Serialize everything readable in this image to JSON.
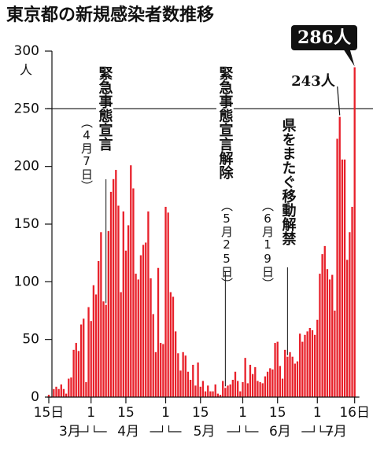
{
  "chart_data": {
    "type": "bar",
    "title": "東京都の新規感染者数推移",
    "y_unit": "人",
    "color": "#e8202a",
    "ylim": [
      0,
      300
    ],
    "yticks": [
      0,
      50,
      100,
      150,
      200,
      250,
      300
    ],
    "hline": 250,
    "months": [
      "3月",
      "4月",
      "5月",
      "6月",
      "7月"
    ],
    "categories": [
      "15日",
      null,
      null,
      null,
      null,
      null,
      null,
      null,
      null,
      null,
      null,
      null,
      null,
      null,
      null,
      null,
      null,
      "1",
      null,
      null,
      null,
      null,
      null,
      null,
      null,
      null,
      null,
      null,
      null,
      null,
      null,
      "15",
      null,
      null,
      null,
      null,
      null,
      null,
      null,
      null,
      null,
      null,
      null,
      null,
      null,
      null,
      null,
      "1",
      null,
      null,
      null,
      null,
      null,
      null,
      null,
      null,
      null,
      null,
      null,
      null,
      null,
      "15",
      null,
      null,
      null,
      null,
      null,
      null,
      null,
      null,
      null,
      null,
      null,
      null,
      null,
      null,
      null,
      null,
      "1",
      null,
      null,
      null,
      null,
      null,
      null,
      null,
      null,
      null,
      null,
      null,
      null,
      null,
      "15",
      null,
      null,
      null,
      null,
      null,
      null,
      null,
      null,
      null,
      null,
      null,
      null,
      null,
      null,
      null,
      "1",
      null,
      null,
      null,
      null,
      null,
      null,
      null,
      null,
      null,
      null,
      null,
      null,
      null,
      null,
      "16日"
    ],
    "values": [
      2,
      0,
      7,
      9,
      7,
      11,
      7,
      3,
      16,
      17,
      41,
      47,
      40,
      63,
      68,
      13,
      78,
      66,
      97,
      89,
      118,
      143,
      83,
      80,
      144,
      178,
      189,
      197,
      166,
      91,
      161,
      127,
      149,
      201,
      181,
      107,
      102,
      123,
      132,
      134,
      161,
      103,
      72,
      39,
      112,
      47,
      46,
      165,
      160,
      91,
      87,
      57,
      38,
      23,
      39,
      36,
      22,
      15,
      28,
      10,
      30,
      9,
      14,
      5,
      10,
      5,
      5,
      11,
      3,
      2,
      14,
      8,
      10,
      11,
      15,
      22,
      14,
      5,
      13,
      34,
      12,
      28,
      20,
      26,
      14,
      13,
      12,
      18,
      22,
      25,
      24,
      47,
      48,
      27,
      16,
      41,
      35,
      39,
      35,
      29,
      31,
      55,
      48,
      54,
      57,
      60,
      58,
      54,
      67,
      107,
      124,
      131,
      111,
      102,
      106,
      75,
      224,
      243,
      206,
      206,
      119,
      143,
      165,
      286
    ],
    "value_labels": [
      null,
      null,
      null,
      null,
      null,
      null,
      null,
      null,
      null,
      null,
      null,
      null,
      null,
      null,
      null,
      null,
      null,
      null,
      null,
      null,
      null,
      null,
      null,
      null,
      null,
      null,
      null,
      null,
      null,
      null,
      null,
      null,
      null,
      null,
      null,
      null,
      null,
      null,
      null,
      null,
      null,
      null,
      null,
      null,
      null,
      null,
      null,
      null,
      null,
      null,
      null,
      null,
      null,
      null,
      null,
      null,
      null,
      null,
      null,
      null,
      null,
      null,
      null,
      null,
      null,
      null,
      null,
      null,
      null,
      null,
      null,
      null,
      null,
      null,
      null,
      null,
      null,
      null,
      null,
      null,
      null,
      null,
      null,
      null,
      null,
      null,
      null,
      null,
      null,
      null,
      null,
      null,
      null,
      null,
      null,
      null,
      null,
      null,
      null,
      null,
      null,
      null,
      null,
      null,
      null,
      null,
      null,
      null,
      null,
      null,
      null,
      null,
      null,
      null,
      null,
      null,
      null,
      "243人",
      null,
      null,
      null,
      null,
      null,
      "286人"
    ],
    "events": [
      {
        "label": "緊急事態宣言",
        "date": "（4月7日）"
      },
      {
        "label": "緊急事態宣言解除",
        "date": "（5月25日）"
      },
      {
        "label": "県をまたぐ移動解禁",
        "date": "（6月19日）"
      }
    ]
  }
}
